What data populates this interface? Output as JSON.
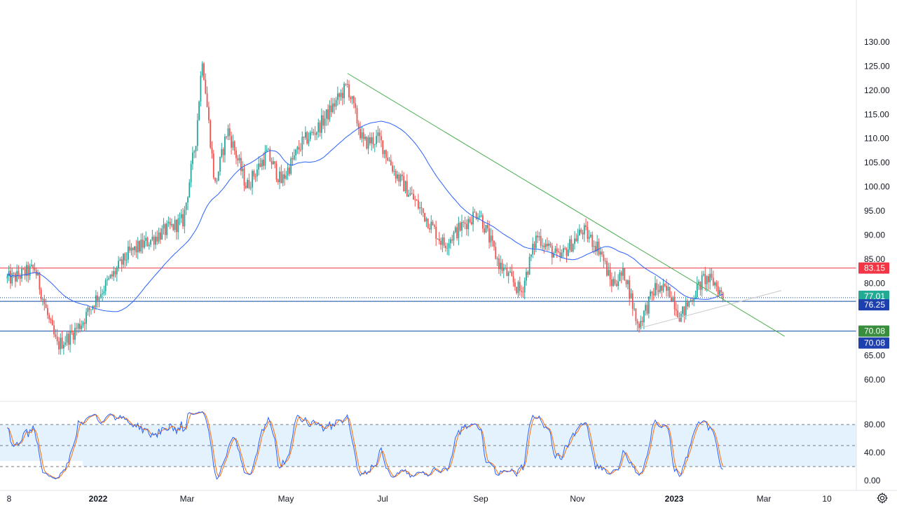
{
  "colors": {
    "up": "#26a69a",
    "down": "#ef5350",
    "ma": "#2962ff",
    "trendline": "#4caf50",
    "support_line": "#c8c8c8",
    "level_red": "#f23645",
    "level_blue": "#0d47a1",
    "badge_red": "#f23645",
    "badge_green": "#388e3c",
    "badge_blue": "#1e40af",
    "badge_teal": "#22ab94",
    "stoch_k": "#2962ff",
    "stoch_d": "#ff6d00",
    "stoch_band": "#e3f2fd",
    "axis_text": "#131722"
  },
  "price_axis": {
    "ticks": [
      "130.00",
      "125.00",
      "120.00",
      "115.00",
      "110.00",
      "105.00",
      "100.00",
      "95.00",
      "90.00",
      "85.00",
      "80.00",
      "75.00",
      "70.00",
      "65.00",
      "60.00"
    ],
    "badges": {
      "resistance": "83.15",
      "last_price": "77.01",
      "support_mid": "76.25",
      "support_low_green": "70.08",
      "support_low_blue": "70.08"
    }
  },
  "stoch_axis": {
    "ticks": [
      "80.00",
      "40.00",
      "0.00"
    ]
  },
  "time_axis": {
    "labels": [
      "8",
      "2022",
      "Mar",
      "May",
      "Jul",
      "Sep",
      "Nov",
      "2023",
      "Mar",
      "10"
    ]
  },
  "chart_data": [
    {
      "type": "candlestick",
      "y_range": [
        57,
        133
      ],
      "x_range": [
        "2021-11-08",
        "2023-04-12"
      ],
      "price_levels": [
        83.15,
        77.01,
        76.25,
        70.08
      ],
      "moving_average": "present (blue line)",
      "trendline_descending": {
        "from": [
          "2022-06-08",
          123.5
        ],
        "to": [
          "2023-03-12",
          69.0
        ]
      },
      "trendline_ascending": {
        "from": [
          "2022-12-08",
          70.5
        ],
        "to": [
          "2023-03-10",
          78.5
        ]
      },
      "close_path": [
        [
          "2021-11-08",
          81
        ],
        [
          "2021-11-22",
          83
        ],
        [
          "2021-12-01",
          72
        ],
        [
          "2021-12-06",
          67
        ],
        [
          "2021-12-14",
          69
        ],
        [
          "2021-12-22",
          72
        ],
        [
          "2021-12-31",
          77
        ],
        [
          "2022-01-20",
          86
        ],
        [
          "2022-02-08",
          90
        ],
        [
          "2022-02-24",
          93
        ],
        [
          "2022-03-04",
          110
        ],
        [
          "2022-03-08",
          127
        ],
        [
          "2022-03-16",
          100
        ],
        [
          "2022-03-24",
          112
        ],
        [
          "2022-04-05",
          100
        ],
        [
          "2022-04-18",
          107
        ],
        [
          "2022-04-27",
          101
        ],
        [
          "2022-05-10",
          109
        ],
        [
          "2022-05-20",
          112
        ],
        [
          "2022-06-08",
          121
        ],
        [
          "2022-06-18",
          109
        ],
        [
          "2022-06-28",
          110
        ],
        [
          "2022-07-08",
          103
        ],
        [
          "2022-07-25",
          95
        ],
        [
          "2022-08-08",
          88
        ],
        [
          "2022-08-20",
          92
        ],
        [
          "2022-08-30",
          95
        ],
        [
          "2022-09-12",
          84
        ],
        [
          "2022-09-26",
          78
        ],
        [
          "2022-10-06",
          90
        ],
        [
          "2022-10-20",
          85
        ],
        [
          "2022-11-04",
          91
        ],
        [
          "2022-11-15",
          87
        ],
        [
          "2022-11-22",
          80
        ],
        [
          "2022-12-01",
          82
        ],
        [
          "2022-12-09",
          71
        ],
        [
          "2022-12-20",
          79
        ],
        [
          "2022-12-30",
          78
        ],
        [
          "2023-01-05",
          73
        ],
        [
          "2023-01-14",
          78
        ],
        [
          "2023-01-20",
          81
        ],
        [
          "2023-01-27",
          80
        ],
        [
          "2023-02-01",
          77
        ]
      ]
    },
    {
      "type": "line",
      "name": "",
      "y_range": [
        0,
        100
      ],
      "bands": [
        20,
        50,
        80
      ],
      "series": [
        {
          "key": "k",
          "pattern": "oscillating"
        },
        {
          "key": "d",
          "pattern": "oscillating (lagging)"
        }
      ]
    }
  ]
}
